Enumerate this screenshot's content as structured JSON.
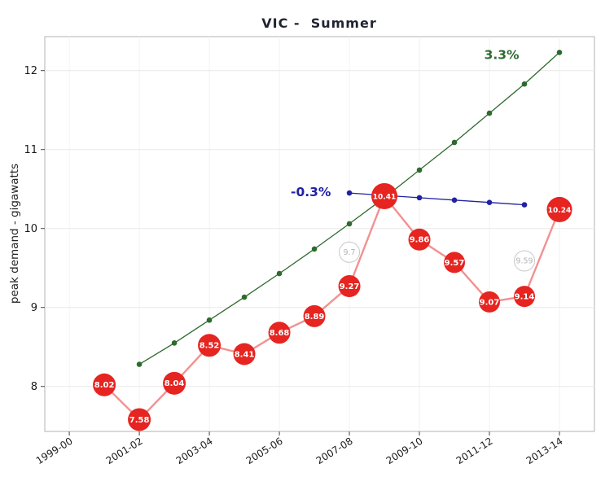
{
  "chart_data": {
    "type": "line",
    "title": "VIC -  Summer",
    "ylabel": "peak demand - gigawatts",
    "xlabel": "",
    "xlim": [
      -0.7,
      15.0
    ],
    "ylim": [
      7.43,
      12.43
    ],
    "x_ticks": {
      "positions": [
        0,
        2,
        4,
        6,
        8,
        10,
        12,
        14
      ],
      "labels": [
        "1999-00",
        "2001-02",
        "2003-04",
        "2005-06",
        "2007-08",
        "2009-10",
        "2011-12",
        "2013-14"
      ]
    },
    "y_ticks": [
      8,
      9,
      10,
      11,
      12
    ],
    "grid": true,
    "legend": "none",
    "colors": {
      "actual_fill": "#e62420",
      "actual_line": "#f29191",
      "growth_green": "#2d6a2d",
      "decline_blue": "#2121a3",
      "ghost_gray": "#c8c8c8",
      "ghost_label": "#b4b4b4",
      "panel_border": "#b3b3b3",
      "grid_line_h": "#e9e9e9",
      "grid_line_v": "#f2f2f2",
      "tick_text": "#1a1a1a"
    },
    "series": [
      {
        "name": "growth-projection",
        "style": "dot-line",
        "color": "#2d6a2d",
        "annotation": "3.3%",
        "x": [
          2,
          3,
          4,
          5,
          6,
          7,
          8,
          9,
          10,
          11,
          12,
          13,
          14
        ],
        "values": [
          8.28,
          8.55,
          8.84,
          9.13,
          9.43,
          9.74,
          10.06,
          10.39,
          10.74,
          11.09,
          11.46,
          11.83,
          12.23
        ]
      },
      {
        "name": "flat-projection",
        "style": "dot-line",
        "color": "#2121a3",
        "annotation": "-0.3%",
        "x": [
          8,
          9,
          10,
          11,
          12,
          13
        ],
        "values": [
          10.45,
          10.42,
          10.39,
          10.36,
          10.33,
          10.3
        ]
      },
      {
        "name": "superseded-forecast",
        "style": "ghost",
        "color": "#c8c8c8",
        "label_color": "#b4b4b4",
        "x": [
          8,
          13
        ],
        "values": [
          9.7,
          9.59
        ],
        "labels": [
          "9.7",
          "9.59"
        ]
      },
      {
        "name": "actual-peak-demand",
        "style": "bubble",
        "color": "#e62420",
        "line_color": "#f29191",
        "x": [
          1,
          2,
          3,
          4,
          5,
          6,
          7,
          8,
          9,
          10,
          11,
          12,
          13,
          14
        ],
        "values": [
          8.02,
          7.58,
          8.04,
          8.52,
          8.41,
          8.68,
          8.89,
          9.27,
          10.41,
          9.86,
          9.57,
          9.07,
          9.14,
          10.24
        ],
        "labels": [
          "8.02",
          "7.58",
          "8.04",
          "8.52",
          "8.41",
          "8.68",
          "8.89",
          "9.27",
          "10.41",
          "9.86",
          "9.57",
          "9.07",
          "9.14",
          "10.24"
        ],
        "sizes": [
          14,
          14,
          14,
          14,
          13.5,
          13.5,
          13.5,
          13.5,
          16,
          13.5,
          13,
          13,
          13,
          15.5
        ]
      }
    ],
    "annotations": [
      {
        "text": "3.3%",
        "x": 12.35,
        "y": 12.2,
        "color": "#2d6a2d"
      },
      {
        "text": "-0.3%",
        "x": 6.9,
        "y": 10.46,
        "color": "#2121a3"
      }
    ]
  }
}
